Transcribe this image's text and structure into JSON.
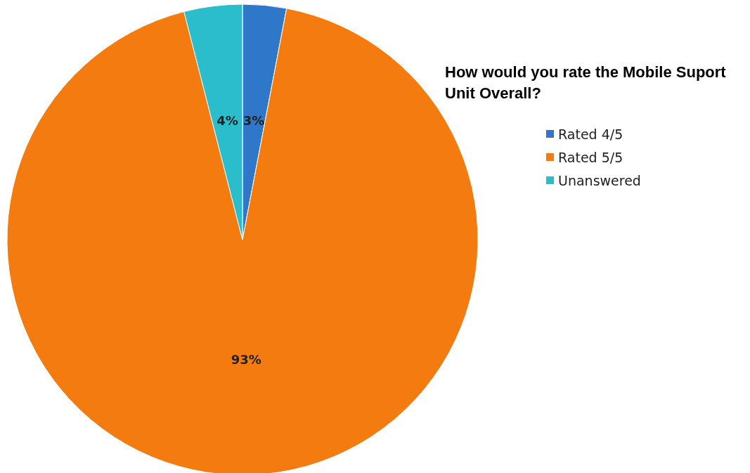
{
  "chart_data": {
    "type": "pie",
    "title": "How would you rate the Mobile Suport Unit Overall?",
    "categories": [
      "Rated 4/5",
      "Rated 5/5",
      "Unanswered"
    ],
    "values": [
      3,
      93,
      4
    ],
    "value_labels": [
      "3%",
      "93%",
      "4%"
    ],
    "colors": [
      "#2f78c9",
      "#f47b10",
      "#2bbdcb"
    ],
    "legend": "right"
  }
}
